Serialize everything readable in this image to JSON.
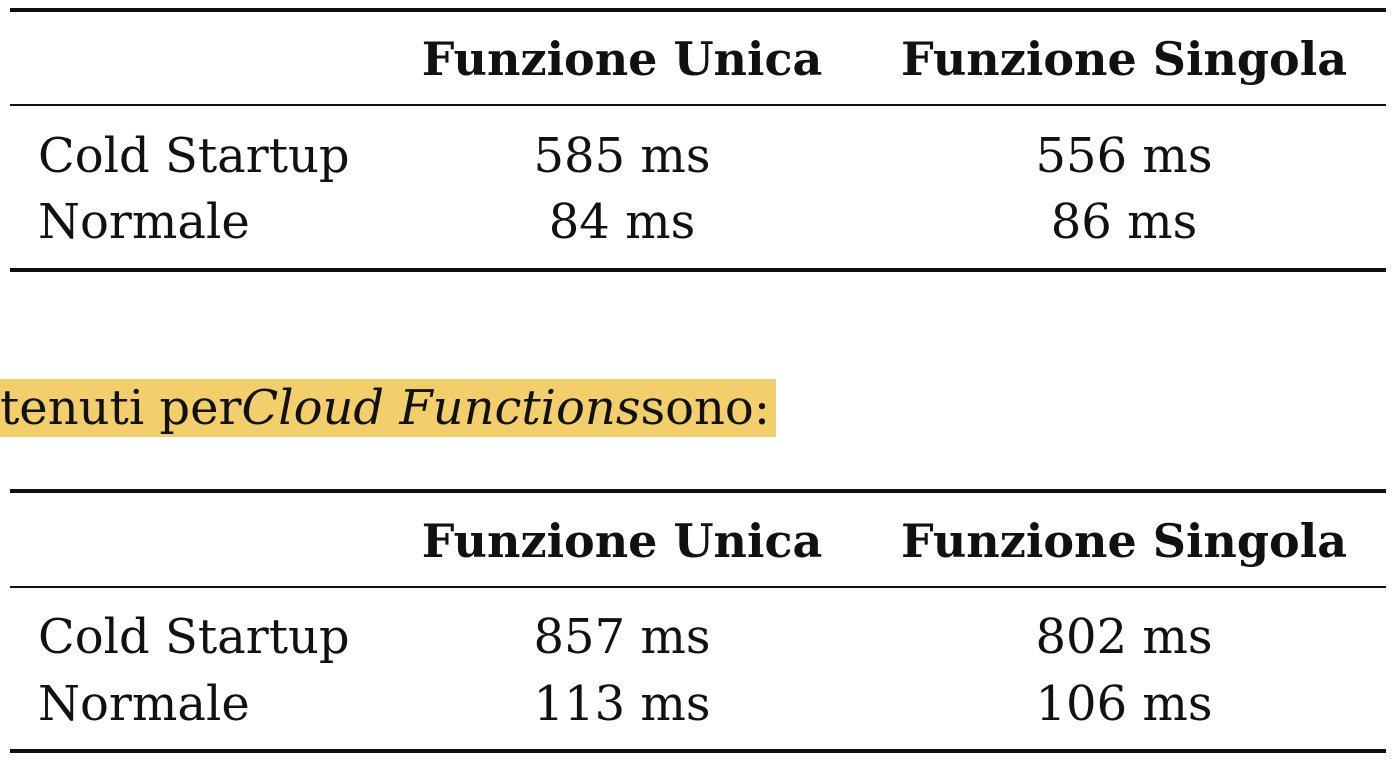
{
  "tables": [
    {
      "headers": [
        "",
        "Funzione Unica",
        "Funzione Singola"
      ],
      "rows": [
        {
          "label": "Cold Startup",
          "unica": "585 ms",
          "singola": "556 ms"
        },
        {
          "label": "Normale",
          "unica": "84 ms",
          "singola": "86 ms"
        }
      ]
    },
    {
      "headers": [
        "",
        "Funzione Unica",
        "Funzione Singola"
      ],
      "rows": [
        {
          "label": "Cold Startup",
          "unica": "857 ms",
          "singola": "802 ms"
        },
        {
          "label": "Normale",
          "unica": "113 ms",
          "singola": "106 ms"
        }
      ]
    }
  ],
  "paragraph": {
    "before": "tenuti per ",
    "italic": "Cloud Functions",
    "after": " sono:",
    "highlight_color": "#f3cf6c"
  }
}
